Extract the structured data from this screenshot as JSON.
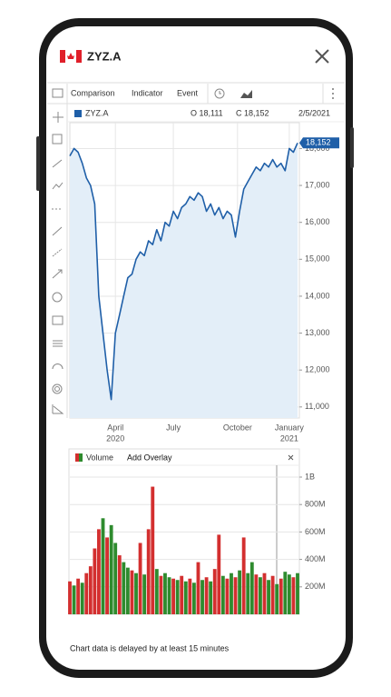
{
  "app": {
    "title": "ZYZ.A",
    "toolbar": [
      "Comparison",
      "Indicator",
      "Event"
    ],
    "legend_symbol": "ZYZ.A",
    "open": "O 18,111",
    "close": "C 18,152",
    "date": "2/5/2021",
    "volume_label": "Volume",
    "overlay": "Add Overlay",
    "footer": "Chart data is delayed by at least 15 minutes"
  },
  "chart_data": [
    {
      "type": "line",
      "color": "#1f5fa8",
      "fill": "#e3eef8",
      "values": [
        17800,
        18000,
        17900,
        17600,
        17200,
        17000,
        16500,
        14000,
        13000,
        12000,
        11200,
        13000,
        13500,
        14000,
        14500,
        14600,
        15000,
        15200,
        15100,
        15500,
        15400,
        15800,
        15500,
        16000,
        15900,
        16300,
        16100,
        16400,
        16500,
        16700,
        16600,
        16800,
        16700,
        16300,
        16500,
        16200,
        16400,
        16100,
        16300,
        16200,
        15600,
        16300,
        16900,
        17100,
        17300,
        17500,
        17400,
        17600,
        17500,
        17700,
        17500,
        17600,
        17400,
        18000,
        17900,
        18152
      ],
      "xlim": [
        0,
        55
      ],
      "xticks": [
        {
          "value": 11,
          "label": "April",
          "year": "2020"
        },
        {
          "value": 25,
          "label": "July"
        },
        {
          "value": 40.5,
          "label": "October"
        },
        {
          "value": 53,
          "label": "January",
          "year": "2021"
        }
      ],
      "ylim": [
        10700,
        18700
      ],
      "yticks": [
        {
          "value": 11000,
          "label": "11,000"
        },
        {
          "value": 12000,
          "label": "12,000"
        },
        {
          "value": 13000,
          "label": "13,000"
        },
        {
          "value": 14000,
          "label": "14,000"
        },
        {
          "value": 15000,
          "label": "15,000"
        },
        {
          "value": 16000,
          "label": "16,000"
        },
        {
          "value": 17000,
          "label": "17,000"
        },
        {
          "value": 18000,
          "label": "18,000"
        }
      ],
      "last_label": "18,152",
      "grid": true
    },
    {
      "type": "bar",
      "values": [
        240000000,
        210000000,
        260000000,
        230000000,
        300000000,
        350000000,
        480000000,
        620000000,
        700000000,
        560000000,
        650000000,
        520000000,
        430000000,
        380000000,
        340000000,
        320000000,
        300000000,
        520000000,
        290000000,
        620000000,
        930000000,
        330000000,
        280000000,
        300000000,
        270000000,
        260000000,
        250000000,
        280000000,
        240000000,
        260000000,
        230000000,
        380000000,
        250000000,
        270000000,
        240000000,
        330000000,
        580000000,
        280000000,
        260000000,
        300000000,
        270000000,
        320000000,
        560000000,
        300000000,
        380000000,
        290000000,
        270000000,
        300000000,
        250000000,
        280000000,
        220000000,
        260000000,
        310000000,
        290000000,
        270000000,
        300000000
      ],
      "colors": [
        "#d32f2f",
        "#2e8b2e",
        "#d32f2f",
        "#2e8b2e",
        "#d32f2f",
        "#d32f2f",
        "#d32f2f",
        "#d32f2f",
        "#2e8b2e",
        "#d32f2f",
        "#2e8b2e",
        "#2e8b2e",
        "#d32f2f",
        "#2e8b2e",
        "#2e8b2e",
        "#d32f2f",
        "#2e8b2e",
        "#d32f2f",
        "#2e8b2e",
        "#d32f2f",
        "#d32f2f",
        "#2e8b2e",
        "#d32f2f",
        "#2e8b2e",
        "#2e8b2e",
        "#d32f2f",
        "#2e8b2e",
        "#d32f2f",
        "#2e8b2e",
        "#d32f2f",
        "#2e8b2e",
        "#d32f2f",
        "#2e8b2e",
        "#d32f2f",
        "#2e8b2e",
        "#d32f2f",
        "#d32f2f",
        "#2e8b2e",
        "#d32f2f",
        "#2e8b2e",
        "#d32f2f",
        "#2e8b2e",
        "#d32f2f",
        "#2e8b2e",
        "#2e8b2e",
        "#d32f2f",
        "#2e8b2e",
        "#d32f2f",
        "#2e8b2e",
        "#d32f2f",
        "#2e8b2e",
        "#d32f2f",
        "#2e8b2e",
        "#2e8b2e",
        "#d32f2f",
        "#2e8b2e"
      ],
      "xlim": [
        0,
        55
      ],
      "ylim": [
        0,
        1086000000
      ],
      "yticks": [
        {
          "value": 200000000,
          "label": "200M"
        },
        {
          "value": 400000000,
          "label": "400M"
        },
        {
          "value": 600000000,
          "label": "600M"
        },
        {
          "value": 800000000,
          "label": "800M"
        },
        {
          "value": 1000000000,
          "label": "1B"
        }
      ]
    }
  ]
}
